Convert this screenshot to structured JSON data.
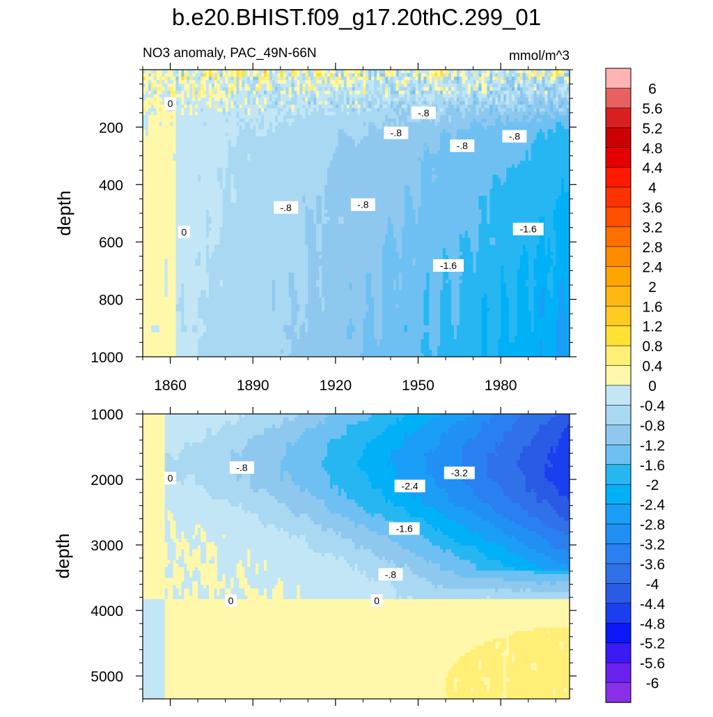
{
  "figure": {
    "title": "b.e20.BHIST.f09_g17.20thC.299_01"
  },
  "chart_data": [
    {
      "type": "heatmap",
      "panel": "upper",
      "title": "NO3 anomaly, PAC_49N-66N",
      "units": "mmol/m^3",
      "xlabel": "",
      "ylabel": "depth",
      "xlim": [
        1850,
        2005
      ],
      "ylim": [
        1000,
        0
      ],
      "x_ticks": [
        1860,
        1890,
        1920,
        1950,
        1980
      ],
      "y_ticks": [
        200,
        400,
        600,
        800,
        1000
      ],
      "contour_labels": [
        {
          "text": "0",
          "x": 1860,
          "y": 118
        },
        {
          "text": "0",
          "x": 1865,
          "y": 565
        },
        {
          "text": "-.8",
          "x": 1902,
          "y": 480
        },
        {
          "text": "-.8",
          "x": 1930,
          "y": 470
        },
        {
          "text": "-.8",
          "x": 1942,
          "y": 220
        },
        {
          "text": "-.8",
          "x": 1952,
          "y": 150
        },
        {
          "text": "-.8",
          "x": 1966,
          "y": 265
        },
        {
          "text": "-.8",
          "x": 1985,
          "y": 232
        },
        {
          "text": "-1.6",
          "x": 1961,
          "y": 682
        },
        {
          "text": "-1.6",
          "x": 1990,
          "y": 555
        }
      ]
    },
    {
      "type": "heatmap",
      "panel": "lower",
      "title": "",
      "xlabel": "",
      "ylabel": "depth",
      "xlim": [
        1850,
        2005
      ],
      "ylim": [
        5350,
        1000
      ],
      "x_ticks": [
        1860,
        1890,
        1920,
        1950,
        1980
      ],
      "y_ticks": [
        1000,
        2000,
        3000,
        4000,
        5000
      ],
      "contour_labels": [
        {
          "text": "0",
          "x": 1860,
          "y": 1980
        },
        {
          "text": "-.8",
          "x": 1886,
          "y": 1820
        },
        {
          "text": "-2.4",
          "x": 1947,
          "y": 2100
        },
        {
          "text": "-3.2",
          "x": 1965,
          "y": 1900
        },
        {
          "text": "-1.6",
          "x": 1945,
          "y": 2750
        },
        {
          "text": "-.8",
          "x": 1940,
          "y": 3450
        },
        {
          "text": "0",
          "x": 1882,
          "y": 3850
        },
        {
          "text": "0",
          "x": 1935,
          "y": 3850
        }
      ]
    }
  ],
  "colorbar": {
    "labels": [
      "6",
      "5.6",
      "5.2",
      "4.8",
      "4.4",
      "4",
      "3.6",
      "3.2",
      "2.8",
      "2.4",
      "2",
      "1.6",
      "1.2",
      "0.8",
      "0.4",
      "0",
      "-0.4",
      "-0.8",
      "-1.2",
      "-1.6",
      "-2",
      "-2.4",
      "-2.8",
      "-3.2",
      "-3.6",
      "-4",
      "-4.4",
      "-4.8",
      "-5.2",
      "-5.6",
      "-6"
    ],
    "colors": [
      "#ffb3b3",
      "#e86060",
      "#d82020",
      "#cc0000",
      "#e60000",
      "#ff1a00",
      "#ff3300",
      "#ff5000",
      "#ff6f00",
      "#ff8c00",
      "#ffa500",
      "#ffb811",
      "#ffca22",
      "#ffe033",
      "#ffef77",
      "#fff8aa",
      "#c2e6f5",
      "#a8d8f2",
      "#8ec8ee",
      "#6ec0f2",
      "#26b7f2",
      "#00b1f7",
      "#1a9ef7",
      "#2090f5",
      "#2a80f0",
      "#3070e8",
      "#2a5be5",
      "#1a3ff0",
      "#0a18f5",
      "#3a1af5",
      "#6a22ee",
      "#8a2ee8"
    ]
  }
}
